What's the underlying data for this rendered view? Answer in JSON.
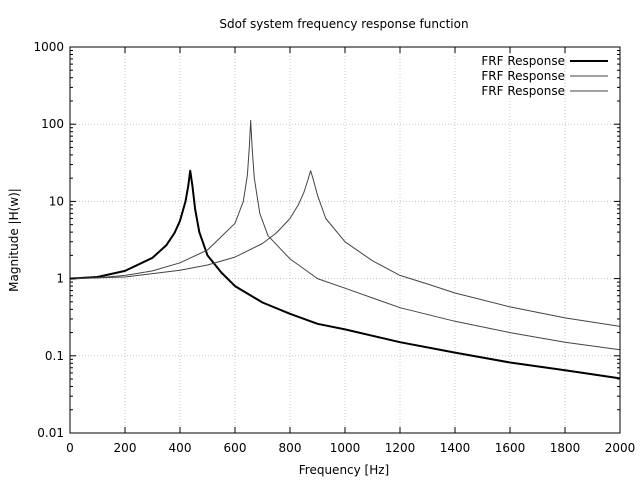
{
  "chart_data": {
    "type": "line",
    "title": "Sdof system frequency response function",
    "xlabel": "Frequency [Hz]",
    "ylabel": "Magnitude |H(w)|",
    "xlim": [
      0,
      2000
    ],
    "ylim": [
      0.01,
      1000
    ],
    "yscale": "log",
    "grid": true,
    "legend_position": "top-right",
    "x_ticks": [
      0,
      200,
      400,
      600,
      800,
      1000,
      1200,
      1400,
      1600,
      1800,
      2000
    ],
    "x_tick_labels": [
      "0",
      "200",
      "400",
      "600",
      "800",
      "1000",
      "1200",
      "1400",
      "1600",
      "1800",
      "2000"
    ],
    "y_ticks": [
      0.01,
      0.1,
      1,
      10,
      100,
      1000
    ],
    "y_tick_labels": [
      "0.01",
      "0.1",
      "1",
      "10",
      "100",
      "1000"
    ],
    "series": [
      {
        "name": "FRF Response",
        "color": "#000000",
        "points": [
          [
            0,
            1.0
          ],
          [
            100,
            1.05
          ],
          [
            200,
            1.26
          ],
          [
            300,
            1.86
          ],
          [
            350,
            2.7
          ],
          [
            380,
            3.9
          ],
          [
            400,
            5.6
          ],
          [
            420,
            10
          ],
          [
            430,
            16
          ],
          [
            437,
            25
          ],
          [
            445,
            16
          ],
          [
            455,
            8
          ],
          [
            470,
            4
          ],
          [
            500,
            2.0
          ],
          [
            550,
            1.2
          ],
          [
            600,
            0.8
          ],
          [
            700,
            0.49
          ],
          [
            800,
            0.35
          ],
          [
            900,
            0.26
          ],
          [
            1000,
            0.22
          ],
          [
            1200,
            0.15
          ],
          [
            1400,
            0.11
          ],
          [
            1600,
            0.082
          ],
          [
            1800,
            0.065
          ],
          [
            2000,
            0.051
          ]
        ]
      },
      {
        "name": "FRF Response",
        "color": "#444444",
        "points": [
          [
            0,
            1.0
          ],
          [
            100,
            1.02
          ],
          [
            200,
            1.1
          ],
          [
            300,
            1.26
          ],
          [
            400,
            1.6
          ],
          [
            500,
            2.35
          ],
          [
            550,
            3.5
          ],
          [
            600,
            5.2
          ],
          [
            630,
            10
          ],
          [
            645,
            22
          ],
          [
            652,
            50
          ],
          [
            657,
            112
          ],
          [
            662,
            50
          ],
          [
            670,
            20
          ],
          [
            690,
            7
          ],
          [
            720,
            3.6
          ],
          [
            800,
            1.8
          ],
          [
            900,
            1.0
          ],
          [
            1000,
            0.75
          ],
          [
            1200,
            0.42
          ],
          [
            1400,
            0.28
          ],
          [
            1600,
            0.2
          ],
          [
            1800,
            0.15
          ],
          [
            2000,
            0.12
          ]
        ]
      },
      {
        "name": "FRF Response",
        "color": "#444444",
        "points": [
          [
            0,
            1.0
          ],
          [
            200,
            1.05
          ],
          [
            400,
            1.28
          ],
          [
            500,
            1.5
          ],
          [
            600,
            1.9
          ],
          [
            700,
            2.85
          ],
          [
            750,
            3.9
          ],
          [
            800,
            6
          ],
          [
            830,
            9
          ],
          [
            850,
            13
          ],
          [
            865,
            19
          ],
          [
            875,
            25
          ],
          [
            885,
            19
          ],
          [
            900,
            12
          ],
          [
            930,
            6
          ],
          [
            1000,
            3.0
          ],
          [
            1100,
            1.7
          ],
          [
            1200,
            1.1
          ],
          [
            1300,
            0.85
          ],
          [
            1400,
            0.65
          ],
          [
            1600,
            0.43
          ],
          [
            1800,
            0.31
          ],
          [
            2000,
            0.24
          ]
        ]
      }
    ]
  }
}
